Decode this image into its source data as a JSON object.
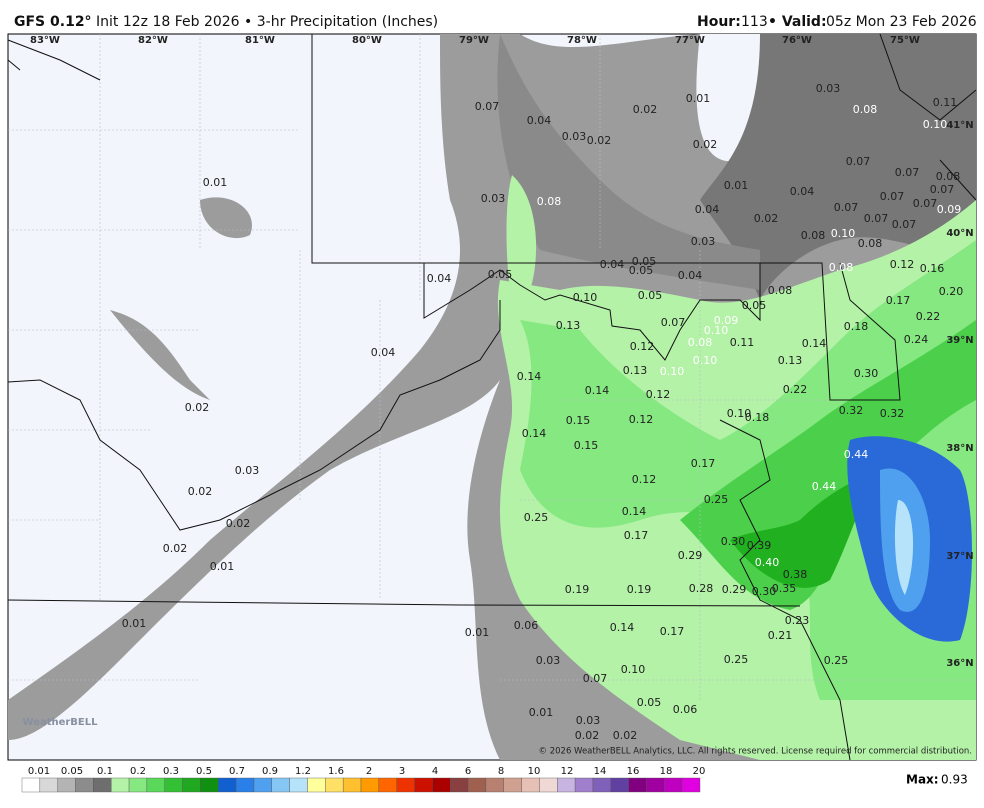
{
  "header": {
    "model": "GFS 0.12°",
    "info": "Init 12z 18 Feb 2026 • 3-hr Precipitation (Inches)",
    "hour_label": "Hour:",
    "hour": "113",
    "valid_label": "• Valid:",
    "valid": "05z Mon 23 Feb 2026"
  },
  "map": {
    "longitudes": [
      "83°W",
      "82°W",
      "81°W",
      "80°W",
      "79°W",
      "78°W",
      "77°W",
      "76°W",
      "75°W"
    ],
    "latitudes": [
      "41°N",
      "40°N",
      "39°N",
      "38°N",
      "37°N",
      "36°N"
    ],
    "value_labels": [
      "0.07",
      "0.04",
      "0.03",
      "0.02",
      "0.02",
      "0.01",
      "0.02",
      "0.03",
      "0.08",
      "0.11",
      "0.10",
      "0.01",
      "0.03",
      "0.08",
      "0.01",
      "0.04",
      "0.07",
      "0.07",
      "0.08",
      "0.07",
      "0.07",
      "0.07",
      "0.09",
      "0.07",
      "0.07",
      "0.07",
      "0.04",
      "0.02",
      "0.03",
      "0.08",
      "0.10",
      "0.08",
      "0.04",
      "0.05",
      "0.04",
      "0.05",
      "0.05",
      "0.04",
      "0.08",
      "0.12",
      "0.16",
      "0.10",
      "0.05",
      "0.08",
      "0.05",
      "0.17",
      "0.20",
      "0.13",
      "0.07",
      "0.09",
      "0.10",
      "0.22",
      "0.08",
      "0.12",
      "0.11",
      "0.18",
      "0.14",
      "0.24",
      "0.04",
      "0.10",
      "0.13",
      "0.13",
      "0.10",
      "0.14",
      "0.30",
      "0.14",
      "0.12",
      "0.22",
      "0.02",
      "0.10",
      "0.18",
      "0.32",
      "0.32",
      "0.15",
      "0.12",
      "0.14",
      "0.15",
      "0.44",
      "0.03",
      "0.17",
      "0.12",
      "0.44",
      "0.02",
      "0.25",
      "0.14",
      "0.25",
      "0.02",
      "0.17",
      "0.30",
      "0.39",
      "0.02",
      "0.29",
      "0.40",
      "0.01",
      "0.38",
      "0.19",
      "0.19",
      "0.28",
      "0.29",
      "0.30",
      "0.35",
      "0.01",
      "0.23",
      "0.14",
      "0.06",
      "0.01",
      "0.17",
      "0.21",
      "0.03",
      "0.25",
      "0.25",
      "0.10",
      "0.07",
      "0.05",
      "0.06",
      "0.01",
      "0.03",
      "0.02",
      "0.02"
    ]
  },
  "legend": {
    "labels": [
      "0.01",
      "0.05",
      "0.1",
      "0.2",
      "0.3",
      "0.5",
      "0.7",
      "0.9",
      "1.2",
      "1.6",
      "2",
      "3",
      "4",
      "6",
      "8",
      "10",
      "12",
      "14",
      "16",
      "18",
      "20"
    ],
    "max_label": "Max:",
    "max": "0.93"
  },
  "watermark": "WeatherBELL",
  "copyright": "© 2026 WeatherBELL Analytics, LLC. All rights reserved. License required for commercial distribution."
}
